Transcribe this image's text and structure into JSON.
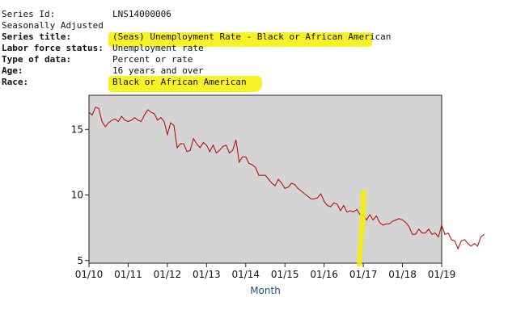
{
  "series_info": {
    "rows": [
      {
        "label": "Series Id:",
        "value": "LNS14000006",
        "bold": false
      },
      {
        "label": "Seasonally Adjusted",
        "value": "",
        "bold": false
      },
      {
        "label": "Series title:",
        "value": "(Seas) Unemployment Rate - Black or African American",
        "bold": true
      },
      {
        "label": "Labor force status:",
        "value": "Unemployment rate",
        "bold": true
      },
      {
        "label": "Type of data:",
        "value": "Percent or rate",
        "bold": true
      },
      {
        "label": "Age:",
        "value": "16 years and over",
        "bold": true
      },
      {
        "label": "Race:",
        "value": "Black or African American",
        "bold": true
      }
    ]
  },
  "highlight_color": "#f4f000",
  "chart_data": {
    "type": "line",
    "xlabel": "Month",
    "ylabel": "",
    "x_ticks": [
      "01/10",
      "01/11",
      "01/12",
      "01/13",
      "01/14",
      "01/15",
      "01/16",
      "01/17",
      "01/18",
      "01/19"
    ],
    "y_ticks": [
      5,
      10,
      15
    ],
    "ylim": [
      4.8,
      17.6
    ],
    "grid": false,
    "line_color": "#b00000",
    "plot_background": "#d4d4d4",
    "series": [
      {
        "start": "2010-01",
        "frequency": "monthly",
        "values": [
          16.3,
          16.1,
          16.7,
          16.6,
          15.6,
          15.2,
          15.5,
          15.7,
          15.8,
          15.6,
          16.0,
          15.7,
          15.6,
          15.7,
          15.9,
          15.7,
          15.6,
          16.1,
          16.5,
          16.3,
          16.2,
          15.7,
          15.9,
          15.6,
          14.6,
          15.5,
          15.3,
          13.6,
          13.9,
          13.9,
          13.3,
          13.4,
          14.3,
          13.9,
          13.6,
          14.0,
          13.8,
          13.3,
          13.8,
          13.2,
          13.4,
          13.7,
          13.8,
          13.2,
          13.4,
          14.2,
          12.5,
          12.9,
          12.9,
          12.4,
          12.3,
          12.1,
          11.5,
          11.5,
          11.5,
          11.2,
          10.9,
          10.7,
          11.2,
          10.9,
          10.5,
          10.6,
          10.9,
          10.8,
          10.5,
          10.3,
          10.1,
          9.9,
          9.7,
          9.7,
          9.8,
          10.1,
          9.5,
          9.2,
          9.1,
          9.4,
          9.3,
          8.8,
          9.2,
          8.7,
          8.8,
          8.7,
          8.9,
          8.5,
          8.5,
          8.1,
          8.5,
          8.1,
          8.4,
          7.9,
          7.7,
          7.8,
          7.8,
          8.0,
          8.1,
          8.2,
          8.1,
          7.9,
          7.6,
          7.0,
          7.0,
          7.4,
          7.1,
          7.1,
          7.4,
          7.0,
          7.1,
          6.8,
          7.7,
          7.0,
          7.1,
          6.6,
          6.5,
          5.9,
          6.5,
          6.6,
          6.3,
          6.1,
          6.3,
          6.1,
          6.8,
          7.0
        ]
      }
    ]
  }
}
